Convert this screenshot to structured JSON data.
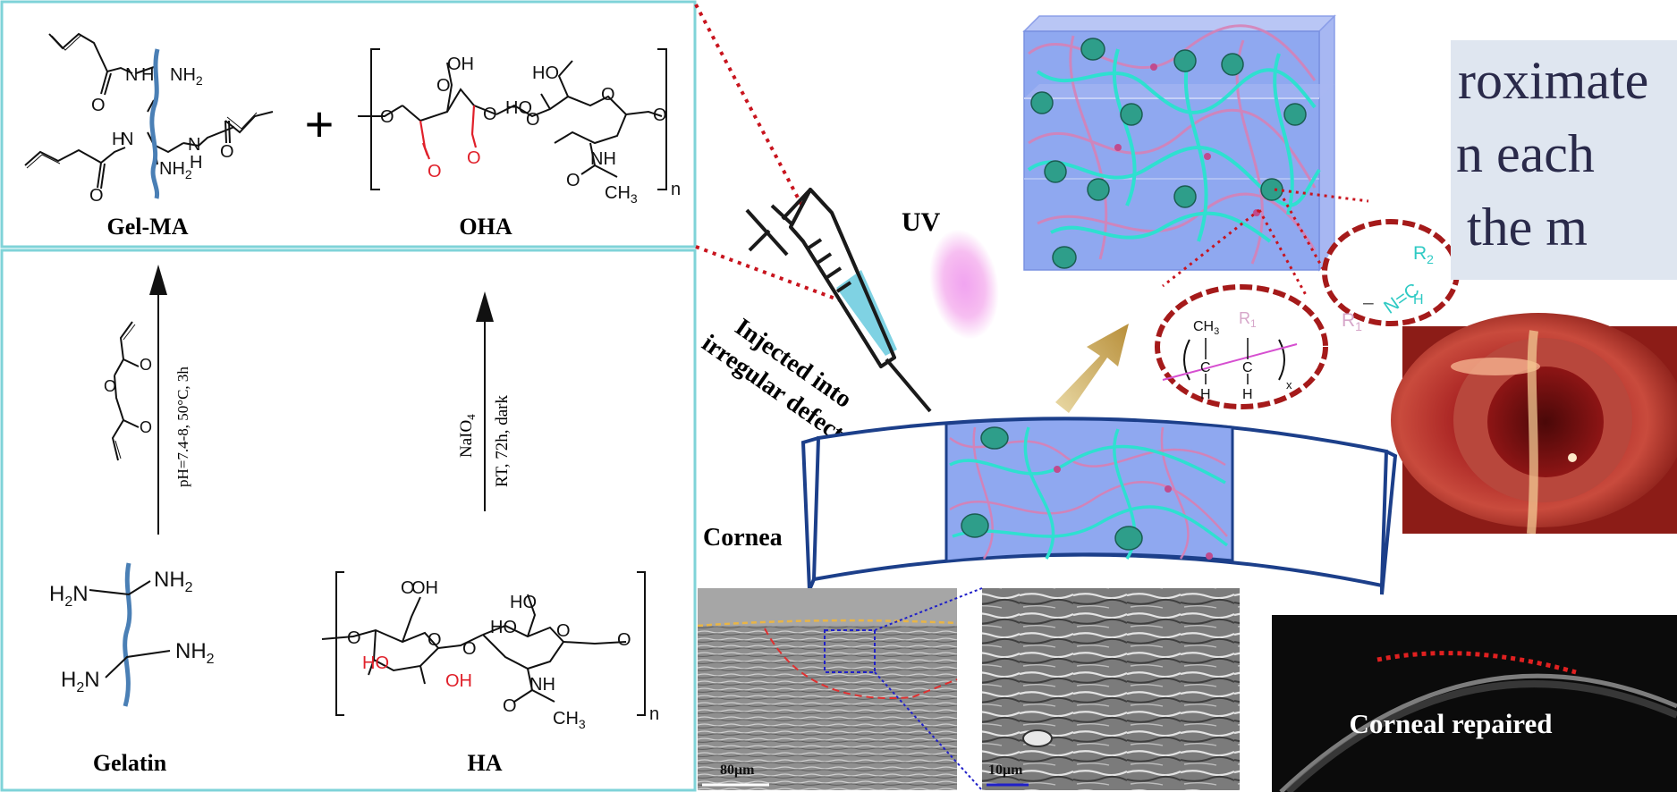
{
  "top_left_panel": {
    "gelma_label": "Gel-MA",
    "oha_label": "OHA",
    "plus": "+",
    "subscript_n": "n",
    "groups": {
      "nh2": "NH",
      "nh2_sub": "2",
      "h": "H",
      "n": "N",
      "o": "O",
      "cooh": "OH",
      "ho": "HO",
      "nh": "NH",
      "ch3": "CH",
      "ch3_sub": "3"
    }
  },
  "bottom_left_panel": {
    "gelatin_label": "Gelatin",
    "ha_label": "HA",
    "reaction1": "pH=7.4-8, 50°C, 3h",
    "reaction2_a": "NaIO",
    "reaction2_a_sub": "4",
    "reaction2_b": "RT, 72h, dark",
    "subscript_n": "n",
    "groups": {
      "h2n": "H",
      "h2n_sub": "2",
      "n_letter": "N",
      "nh2": "NH",
      "nh2_sub": "2",
      "oh": "OH",
      "ho": "HO",
      "nh": "NH",
      "ch3": "CH",
      "ch3_sub": "3",
      "o": "O"
    }
  },
  "center": {
    "uv_label": "UV",
    "injection_label_line1": "Injected into",
    "injection_label_line2": "irregular defect",
    "cornea_label": "Cornea",
    "link_imine": {
      "r1": "R",
      "r1_sub": "1",
      "n_eq_c": "N=C",
      "r2": "R",
      "r2_sub": "2",
      "h": "H",
      "dash": "–"
    },
    "link_polymer": {
      "ch3": "CH",
      "ch3_sub": "3",
      "r1": "R",
      "r1_sub": "1",
      "c": "C",
      "h": "H",
      "x": "x"
    }
  },
  "sem": {
    "scale_left": "80μm",
    "scale_right": "10μm"
  },
  "right_panel": {
    "text_line1": "roximate",
    "text_line2": "n each",
    "text_line3": "the m",
    "oct_label": "Corneal repaired"
  },
  "colors": {
    "panel_border": "#7fd3d8",
    "chain_blue": "#4a7fb5",
    "aldehyde_red": "#e0202a",
    "dotted_red": "#c8141e",
    "hydrogel_blue": "#8fa8f0",
    "cyan_chain": "#2ee0d0",
    "pink_chain": "#d97fb4",
    "uv_glow": "#f08ae6",
    "oval_red": "#a51a1a",
    "imine_cyan": "#2fcac4",
    "imine_pink": "#d6a6c9",
    "arrow_gold": "#c9a655"
  }
}
